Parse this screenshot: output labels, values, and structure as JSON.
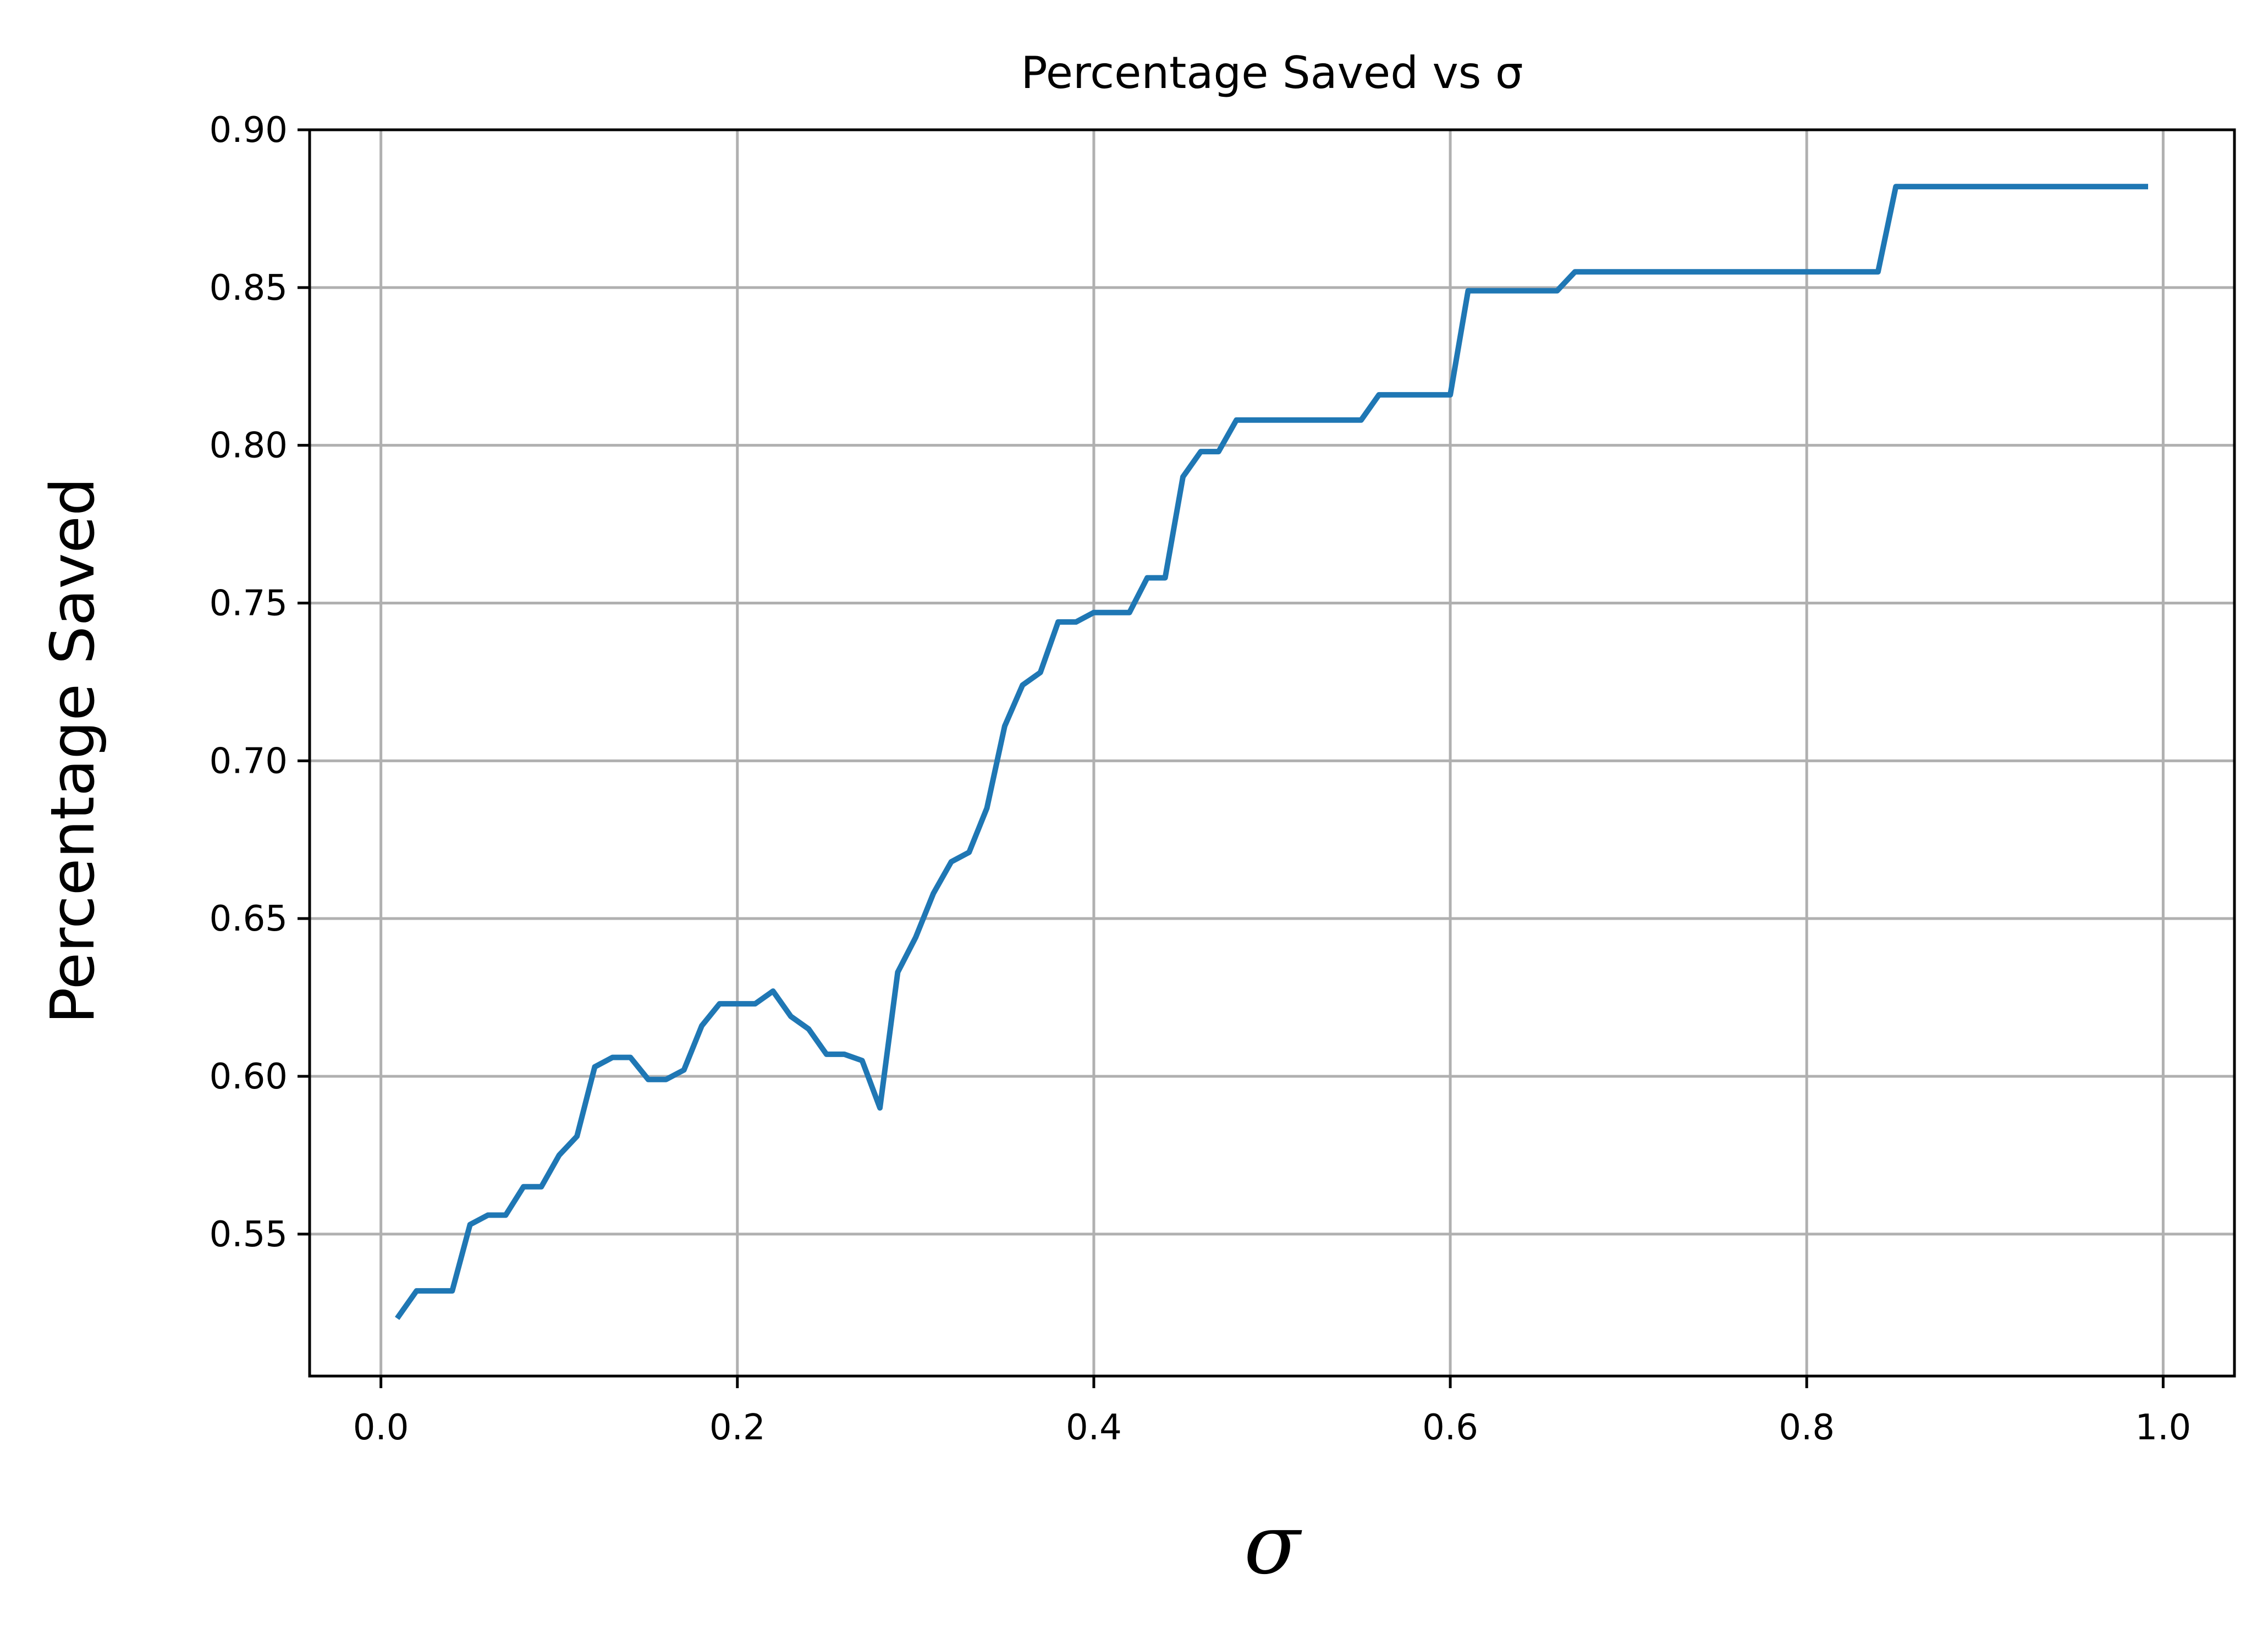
{
  "chart_data": {
    "type": "line",
    "title": "Percentage Saved vs σ",
    "xlabel": "σ",
    "ylabel": "Percentage Saved",
    "xlim": [
      -0.04,
      1.04
    ],
    "ylim": [
      0.505,
      0.9
    ],
    "xticks": [
      0.0,
      0.2,
      0.4,
      0.6,
      0.8,
      1.0
    ],
    "xtick_labels": [
      "0.0",
      "0.2",
      "0.4",
      "0.6",
      "0.8",
      "1.0"
    ],
    "yticks": [
      0.55,
      0.6,
      0.65,
      0.7,
      0.75,
      0.8,
      0.85,
      0.9
    ],
    "ytick_labels": [
      "0.55",
      "0.60",
      "0.65",
      "0.70",
      "0.75",
      "0.80",
      "0.85",
      "0.90"
    ],
    "grid": true,
    "series": [
      {
        "color": "#1f77b4",
        "x": [
          0.01,
          0.02,
          0.03,
          0.04,
          0.05,
          0.06,
          0.07,
          0.08,
          0.09,
          0.1,
          0.11,
          0.12,
          0.13,
          0.14,
          0.15,
          0.16,
          0.17,
          0.18,
          0.19,
          0.2,
          0.21,
          0.22,
          0.23,
          0.24,
          0.25,
          0.26,
          0.27,
          0.28,
          0.29,
          0.3,
          0.31,
          0.32,
          0.33,
          0.34,
          0.35,
          0.36,
          0.37,
          0.38,
          0.39,
          0.4,
          0.41,
          0.42,
          0.43,
          0.44,
          0.45,
          0.46,
          0.47,
          0.48,
          0.49,
          0.5,
          0.51,
          0.52,
          0.53,
          0.54,
          0.55,
          0.56,
          0.57,
          0.58,
          0.59,
          0.6,
          0.61,
          0.62,
          0.63,
          0.64,
          0.65,
          0.66,
          0.67,
          0.68,
          0.69,
          0.7,
          0.71,
          0.72,
          0.73,
          0.74,
          0.75,
          0.76,
          0.77,
          0.78,
          0.79,
          0.8,
          0.81,
          0.82,
          0.83,
          0.84,
          0.85,
          0.86,
          0.87,
          0.88,
          0.89,
          0.9,
          0.91,
          0.92,
          0.93,
          0.94,
          0.95,
          0.96,
          0.97,
          0.98,
          0.99
        ],
        "values": [
          0.524,
          0.532,
          0.532,
          0.532,
          0.553,
          0.556,
          0.556,
          0.565,
          0.565,
          0.575,
          0.581,
          0.603,
          0.606,
          0.606,
          0.599,
          0.599,
          0.602,
          0.616,
          0.623,
          0.623,
          0.623,
          0.627,
          0.619,
          0.615,
          0.607,
          0.607,
          0.605,
          0.59,
          0.633,
          0.644,
          0.658,
          0.668,
          0.671,
          0.685,
          0.711,
          0.724,
          0.728,
          0.744,
          0.744,
          0.747,
          0.747,
          0.747,
          0.758,
          0.758,
          0.79,
          0.798,
          0.798,
          0.808,
          0.808,
          0.808,
          0.808,
          0.808,
          0.808,
          0.808,
          0.808,
          0.816,
          0.816,
          0.816,
          0.816,
          0.816,
          0.849,
          0.849,
          0.849,
          0.849,
          0.849,
          0.849,
          0.855,
          0.855,
          0.855,
          0.855,
          0.855,
          0.855,
          0.855,
          0.855,
          0.855,
          0.855,
          0.855,
          0.855,
          0.855,
          0.855,
          0.855,
          0.855,
          0.855,
          0.855,
          0.882,
          0.882,
          0.882,
          0.882,
          0.882,
          0.882,
          0.882,
          0.882,
          0.882,
          0.882,
          0.882,
          0.882,
          0.882,
          0.882,
          0.882
        ]
      }
    ]
  }
}
